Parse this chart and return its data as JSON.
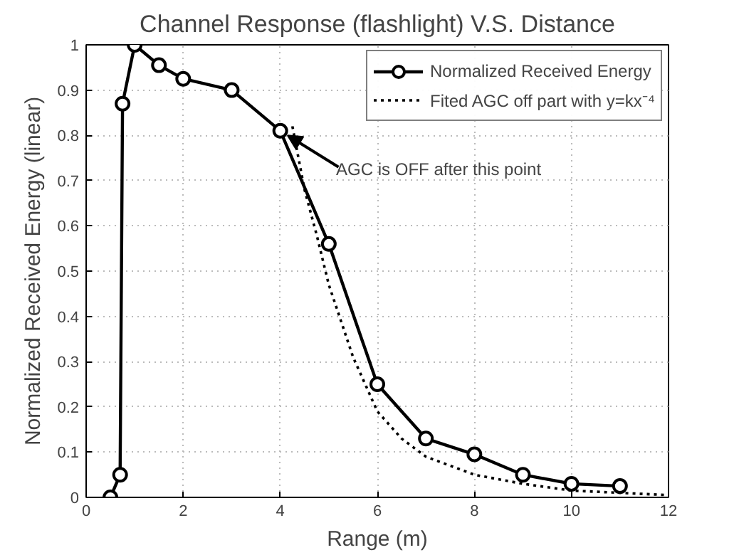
{
  "chart_data": {
    "type": "line",
    "title": "Channel Response (flashlight) V.S. Distance",
    "xlabel": "Range (m)",
    "ylabel": "Normalized Received Energy (linear)",
    "series": [
      {
        "name": "Normalized Received Energy",
        "color": "#000000",
        "marker": "circle",
        "line_style": "solid",
        "x": [
          0.5,
          0.7,
          0.75,
          1,
          1.5,
          2,
          3,
          4,
          5,
          6,
          7,
          8,
          9,
          10,
          11
        ],
        "values": [
          0,
          0.05,
          0.87,
          1,
          0.955,
          0.925,
          0.9,
          0.81,
          0.56,
          0.25,
          0.13,
          0.095,
          0.05,
          0.03,
          0.025
        ]
      },
      {
        "name": "Fited AGC off part with y=kx⁻⁴",
        "color": "#000000",
        "marker": "none",
        "line_style": "dotted",
        "x": [
          4.25,
          4.5,
          4.75,
          5,
          5.25,
          5.5,
          6,
          6.5,
          7,
          8,
          9,
          10,
          11,
          12
        ],
        "values": [
          0.82,
          0.68,
          0.58,
          0.47,
          0.39,
          0.31,
          0.19,
          0.13,
          0.09,
          0.05,
          0.03,
          0.015,
          0.01,
          0.005
        ]
      }
    ],
    "annotations": [
      {
        "text": "AGC is OFF after this point",
        "x": 4,
        "y": 0.81
      }
    ],
    "xlim": [
      0,
      12
    ],
    "ylim": [
      0,
      1
    ],
    "xticks": [
      0,
      2,
      4,
      6,
      8,
      10,
      12
    ],
    "yticks": [
      0,
      0.1,
      0.2,
      0.3,
      0.4,
      0.5,
      0.6,
      0.7,
      0.8,
      0.9,
      1
    ],
    "grid": true,
    "legend": "top right"
  }
}
